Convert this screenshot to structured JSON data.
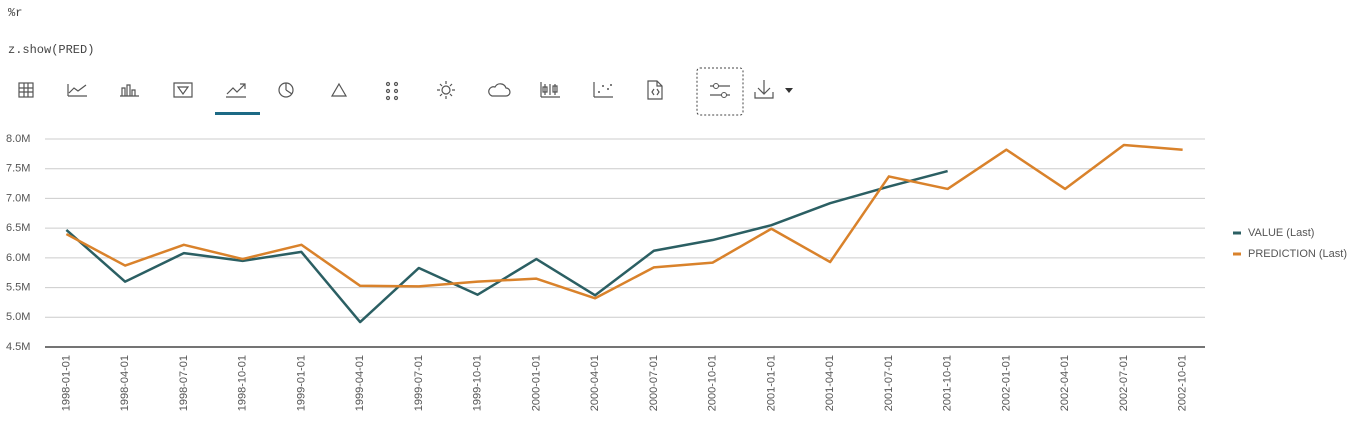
{
  "cell": {
    "magic": "%r",
    "code": "z.show(PRED)"
  },
  "chart_data": {
    "type": "line",
    "categories": [
      "1998-01-01",
      "1998-04-01",
      "1998-07-01",
      "1998-10-01",
      "1999-01-01",
      "1999-04-01",
      "1999-07-01",
      "1999-10-01",
      "2000-01-01",
      "2000-04-01",
      "2000-07-01",
      "2000-10-01",
      "2001-01-01",
      "2001-04-01",
      "2001-07-01",
      "2001-10-01",
      "2002-01-01",
      "2002-04-01",
      "2002-07-01",
      "2002-10-01"
    ],
    "series": [
      {
        "name": "VALUE (Last)",
        "color": "#2b5f63",
        "values": [
          6470000,
          5600000,
          6080000,
          5950000,
          6100000,
          4920000,
          5830000,
          5380000,
          5980000,
          5370000,
          6120000,
          6300000,
          6550000,
          6920000,
          7200000,
          7460000,
          null,
          null,
          null,
          null
        ]
      },
      {
        "name": "PREDICTION (Last)",
        "color": "#d9822b",
        "values": [
          6400000,
          5870000,
          6220000,
          5980000,
          6220000,
          5530000,
          5520000,
          5600000,
          5650000,
          5320000,
          5840000,
          5920000,
          6490000,
          5930000,
          7370000,
          7160000,
          7820000,
          7160000,
          7900000,
          7820000
        ]
      }
    ],
    "ylim": [
      4500000,
      8000000
    ],
    "yticks": [
      {
        "value": 4500000,
        "label": "4.5M"
      },
      {
        "value": 5000000,
        "label": "5.0M"
      },
      {
        "value": 5500000,
        "label": "5.5M"
      },
      {
        "value": 6000000,
        "label": "6.0M"
      },
      {
        "value": 6500000,
        "label": "6.5M"
      },
      {
        "value": 7000000,
        "label": "7.0M"
      },
      {
        "value": 7500000,
        "label": "7.5M"
      },
      {
        "value": 8000000,
        "label": "8.0M"
      }
    ],
    "grid": true,
    "legend": "right"
  }
}
